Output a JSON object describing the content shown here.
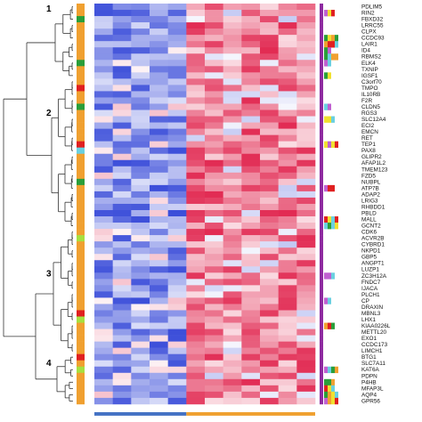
{
  "chart_data": {
    "type": "heatmap",
    "title": "",
    "xlabel": "",
    "ylabel": "",
    "genes": [
      "PDLIM5",
      "RIN2",
      "FBXD32",
      "LRRC55",
      "CLPX",
      "CCDC93",
      "LAIR1",
      "ID4",
      "RBMS2",
      "ELK4",
      "TXNIP",
      "IGSF1",
      "C3orf70",
      "TMPO",
      "IL10RB",
      "F2R",
      "CLDN5",
      "RGS3",
      "SLC12A4",
      "ECI2",
      "EMCN",
      "RET",
      "TEP1",
      "PAX8",
      "GLIPR2",
      "AFAP1L2",
      "TMEM123",
      "FZD5",
      "NUBPL",
      "ATP7B",
      "ADAP2",
      "LRIG3",
      "RHBDD1",
      "PBLD",
      "MALL",
      "GCNT2",
      "CDK6",
      "ACVR2B",
      "CYBRD1",
      "NKPD1",
      "GBP5",
      "ANGPT1",
      "LUZP1",
      "ZC3H12A",
      "FNDC7",
      "IJACA",
      "PLCH1",
      "CP",
      "DRAXIN",
      "MBNL3",
      "LHX1",
      "KIAA0226L",
      "METTL20",
      "EXO1",
      "CCDC173",
      "LIMCH1",
      "BTG1",
      "SLC7A11",
      "KAT6A",
      "PDPN",
      "P4HB",
      "MFAP3L",
      "AQP4",
      "GPR56"
    ],
    "clusters": [
      {
        "label": "1",
        "rows": [
          0,
          11
        ]
      },
      {
        "label": "2",
        "rows": [
          12,
          35
        ]
      },
      {
        "label": "3",
        "rows": [
          36,
          55
        ]
      },
      {
        "label": "4",
        "rows": [
          56,
          63
        ]
      }
    ],
    "n_samples": 12,
    "n_low_group": 5,
    "group_colors": [
      "#4472c4",
      "#f0a030"
    ],
    "value_range": [
      -2,
      2
    ],
    "color_low": "#2b3fd6",
    "color_mid": "#ffffff",
    "color_high": "#e0204a",
    "left_annotation_colors": [
      "#f0a030",
      "#2a9e3a",
      "#6ad0e0",
      "#e02020",
      "#a6e040",
      "#f0a030"
    ],
    "right_annotation_base": "#8e2aa0",
    "right_annotation_colors": [
      "#f0e030",
      "#e02020",
      "#2a9e3a",
      "#6ad0e0",
      "#f0a030",
      "#c060d0"
    ]
  }
}
